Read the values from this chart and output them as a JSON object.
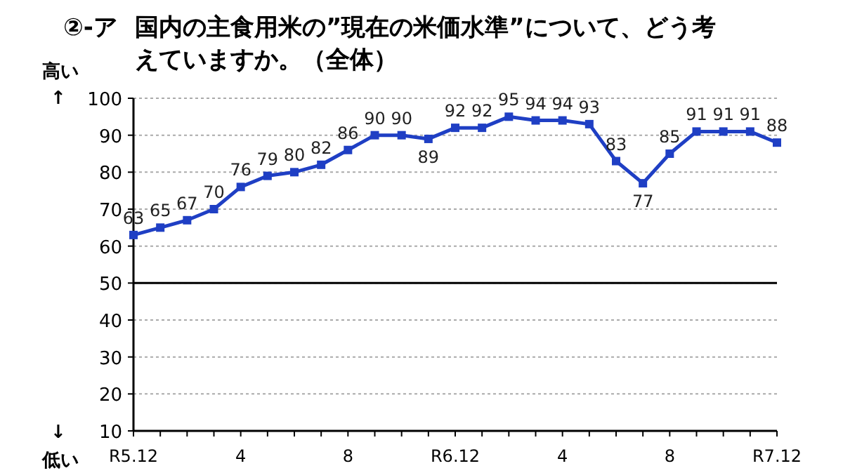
{
  "chart_data": {
    "type": "line",
    "title": "②-ア 国内の主食用米の”現在の米価水準”について、どう考えていますか。（全体）",
    "annotations": [
      "高い ↑",
      "↓ 低い"
    ],
    "categories": [
      "R5.12",
      null,
      null,
      null,
      "4",
      null,
      null,
      null,
      "8",
      null,
      null,
      null,
      "R6.12",
      null,
      null,
      null,
      "4",
      null,
      null,
      null,
      "8",
      null,
      null,
      null,
      "R7.12"
    ],
    "series": [
      {
        "color": "#1f3fc4",
        "values": [
          63,
          65,
          67,
          70,
          76,
          79,
          80,
          82,
          86,
          90,
          90,
          89,
          92,
          92,
          95,
          94,
          94,
          93,
          83,
          77,
          85,
          91,
          91,
          91,
          88
        ]
      }
    ],
    "ylim": [
      10,
      100
    ],
    "yticks": [
      10,
      20,
      30,
      40,
      50,
      60,
      70,
      80,
      90,
      100
    ],
    "grid": "y",
    "marker": "square",
    "line_style": "solid",
    "data_labels": true,
    "ref_lines": [
      {
        "axis": "y",
        "value": 50,
        "color": "#000000"
      }
    ]
  }
}
